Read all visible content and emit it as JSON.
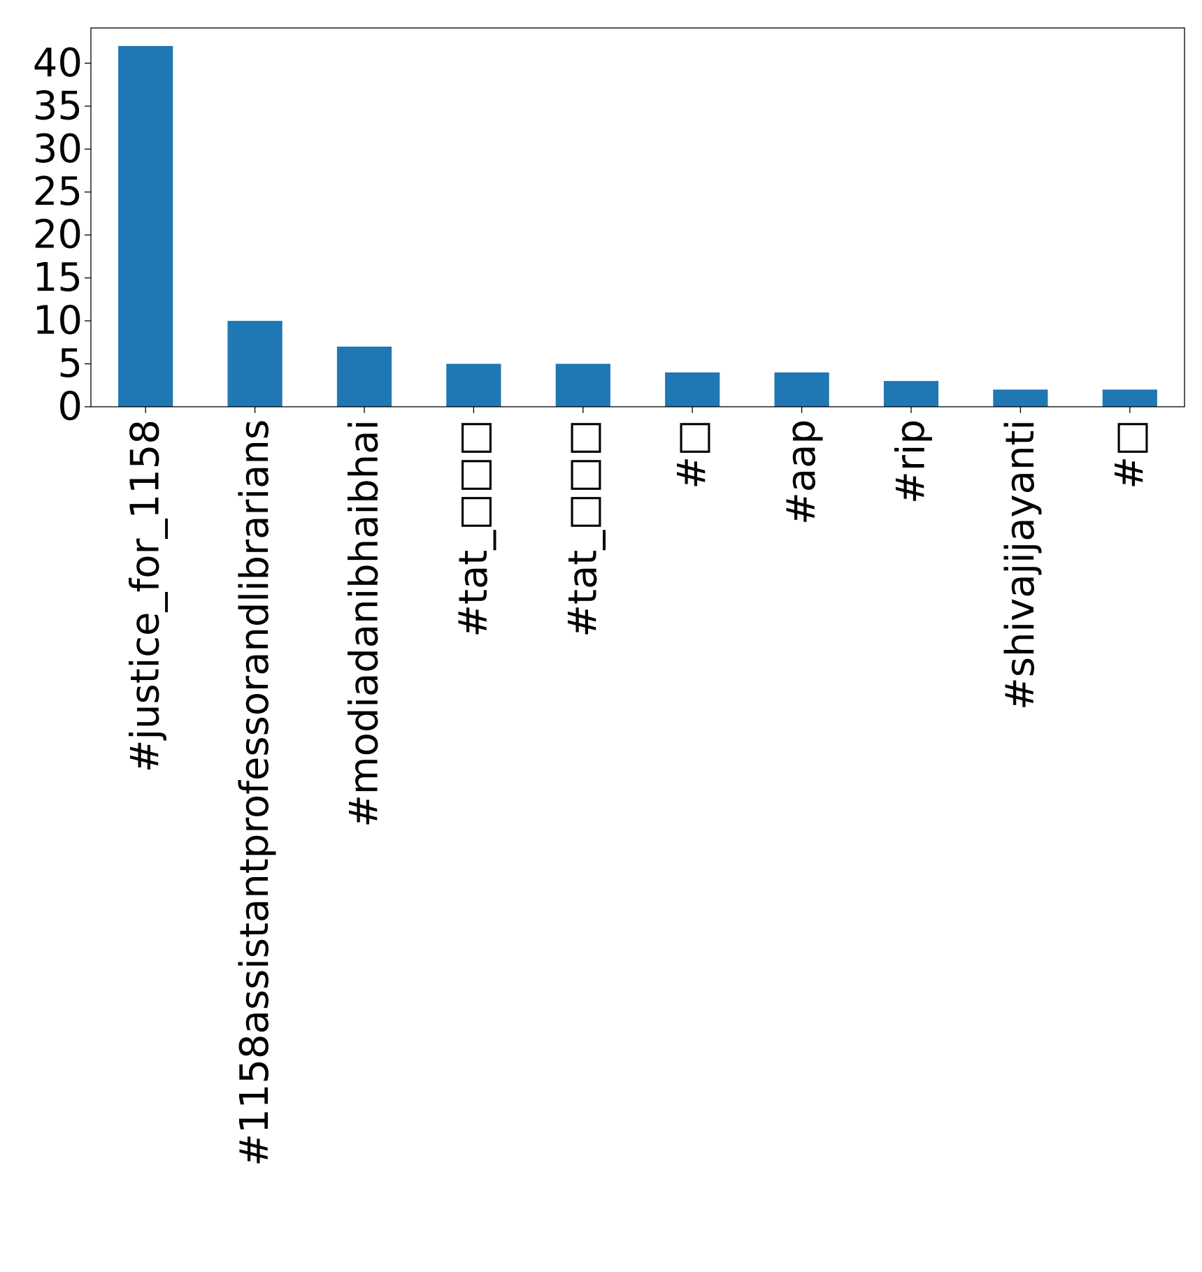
{
  "chart_data": {
    "type": "bar",
    "title": "",
    "xlabel": "",
    "ylabel": "",
    "categories": [
      "#justice_for_1158",
      "#1158assistantprofessorandlibrarians",
      "#modiadanibhaibhai",
      "#tat_□□□",
      "#tat_□□□",
      "#□",
      "#aap",
      "#rip",
      "#shivajijayanti",
      "#□"
    ],
    "values": [
      42,
      10,
      7,
      5,
      5,
      4,
      4,
      3,
      2,
      2
    ],
    "ylim": [
      0,
      44.1
    ],
    "yticks": [
      0,
      5,
      10,
      15,
      20,
      25,
      30,
      35,
      40
    ],
    "ytick_labels": [
      "0",
      "5",
      "10",
      "15",
      "20",
      "25",
      "30",
      "35",
      "40"
    ],
    "bar_color": "#1f77b4",
    "grid": false,
    "legend": "none"
  }
}
